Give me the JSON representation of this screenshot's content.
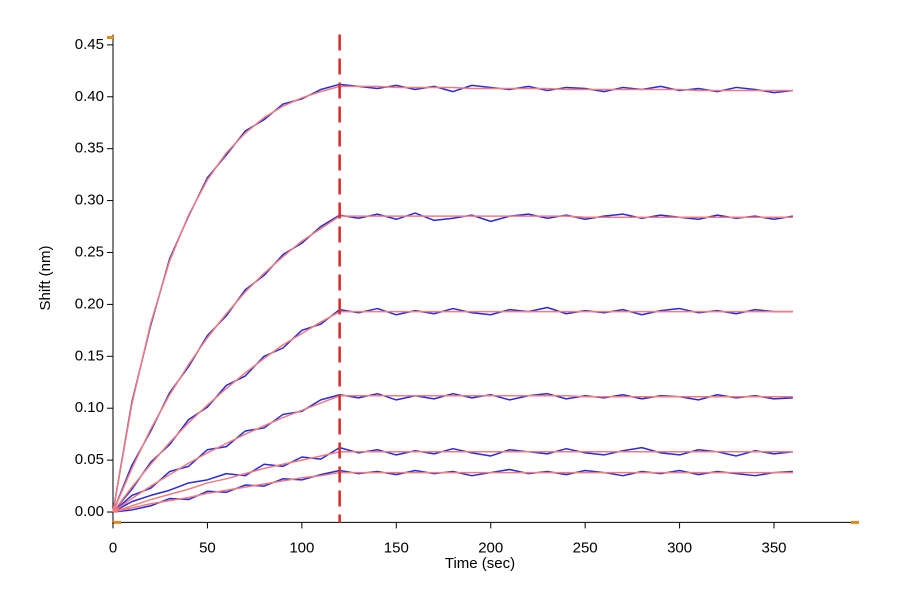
{
  "chart_data": {
    "type": "line",
    "x_label": "Time (sec)",
    "y_label": "Shift (nm)",
    "xlim": [
      0,
      395
    ],
    "ylim": [
      -0.01,
      0.46
    ],
    "xticks": [
      0,
      50,
      100,
      150,
      200,
      250,
      300,
      350
    ],
    "yticks": [
      {
        "value": 0,
        "label": "0.00"
      },
      0.05,
      {
        "value": 0.1,
        "label": "0.10"
      },
      0.15,
      {
        "value": 0.2,
        "label": "0.20"
      },
      0.25,
      {
        "value": 0.3,
        "label": "0.30"
      },
      0.35,
      {
        "value": 0.4,
        "label": "0.40"
      },
      0.45
    ],
    "grid": false,
    "vline_x": 120,
    "vline_color": "#d42a2a",
    "x": [
      0,
      10,
      20,
      30,
      40,
      50,
      60,
      70,
      80,
      90,
      100,
      110,
      120,
      130,
      140,
      150,
      160,
      170,
      180,
      190,
      200,
      210,
      220,
      230,
      240,
      250,
      260,
      270,
      280,
      290,
      300,
      310,
      320,
      330,
      340,
      350,
      360
    ],
    "series": [
      {
        "color": "#2a2ad8",
        "values": [
          0,
          0.106,
          0.18,
          0.244,
          0.285,
          0.322,
          0.344,
          0.367,
          0.378,
          0.393,
          0.398,
          0.407,
          0.412,
          0.41,
          0.408,
          0.411,
          0.407,
          0.41,
          0.405,
          0.411,
          0.409,
          0.407,
          0.41,
          0.406,
          0.409,
          0.408,
          0.405,
          0.409,
          0.407,
          0.41,
          0.406,
          0.408,
          0.405,
          0.409,
          0.407,
          0.404,
          0.406
        ]
      },
      {
        "color": "#2a2ad8",
        "values": [
          0,
          0.045,
          0.078,
          0.115,
          0.14,
          0.17,
          0.189,
          0.214,
          0.228,
          0.248,
          0.259,
          0.275,
          0.286,
          0.283,
          0.287,
          0.282,
          0.288,
          0.281,
          0.283,
          0.286,
          0.28,
          0.285,
          0.287,
          0.283,
          0.286,
          0.282,
          0.285,
          0.287,
          0.283,
          0.286,
          0.284,
          0.282,
          0.286,
          0.283,
          0.285,
          0.282,
          0.285
        ]
      },
      {
        "color": "#2a2ad8",
        "values": [
          0,
          0.022,
          0.048,
          0.065,
          0.089,
          0.101,
          0.122,
          0.131,
          0.15,
          0.158,
          0.175,
          0.181,
          0.195,
          0.192,
          0.196,
          0.19,
          0.194,
          0.191,
          0.196,
          0.192,
          0.19,
          0.195,
          0.193,
          0.197,
          0.191,
          0.194,
          0.192,
          0.195,
          0.19,
          0.194,
          0.196,
          0.192,
          0.194,
          0.191,
          0.195,
          0.193,
          0.193
        ]
      },
      {
        "color": "#2a2ad8",
        "values": [
          0,
          0.016,
          0.023,
          0.039,
          0.044,
          0.06,
          0.063,
          0.078,
          0.081,
          0.094,
          0.097,
          0.108,
          0.113,
          0.11,
          0.114,
          0.108,
          0.112,
          0.109,
          0.114,
          0.11,
          0.113,
          0.108,
          0.112,
          0.114,
          0.109,
          0.112,
          0.11,
          0.113,
          0.109,
          0.112,
          0.111,
          0.108,
          0.113,
          0.11,
          0.112,
          0.109,
          0.11
        ]
      },
      {
        "color": "#2a2ad8",
        "values": [
          0,
          0.01,
          0.016,
          0.021,
          0.028,
          0.031,
          0.037,
          0.035,
          0.046,
          0.044,
          0.053,
          0.051,
          0.062,
          0.057,
          0.06,
          0.055,
          0.059,
          0.056,
          0.061,
          0.057,
          0.054,
          0.06,
          0.058,
          0.056,
          0.061,
          0.057,
          0.055,
          0.059,
          0.062,
          0.057,
          0.055,
          0.06,
          0.058,
          0.054,
          0.059,
          0.056,
          0.058
        ]
      },
      {
        "color": "#2a2ad8",
        "values": [
          0,
          0.002,
          0.006,
          0.013,
          0.012,
          0.02,
          0.019,
          0.026,
          0.025,
          0.032,
          0.031,
          0.036,
          0.04,
          0.037,
          0.039,
          0.036,
          0.04,
          0.037,
          0.039,
          0.035,
          0.038,
          0.041,
          0.037,
          0.039,
          0.036,
          0.04,
          0.038,
          0.035,
          0.039,
          0.037,
          0.04,
          0.036,
          0.039,
          0.037,
          0.035,
          0.038,
          0.039
        ]
      },
      {
        "color": "#f27c7c",
        "values": [
          0,
          0.104,
          0.182,
          0.242,
          0.286,
          0.32,
          0.346,
          0.365,
          0.38,
          0.391,
          0.399,
          0.405,
          0.41,
          0.41,
          0.41,
          0.409,
          0.409,
          0.409,
          0.409,
          0.408,
          0.408,
          0.408,
          0.408,
          0.408,
          0.407,
          0.407,
          0.407,
          0.407,
          0.407,
          0.407,
          0.407,
          0.406,
          0.406,
          0.406,
          0.406,
          0.406,
          0.406
        ]
      },
      {
        "color": "#f27c7c",
        "values": [
          0,
          0.042,
          0.08,
          0.113,
          0.142,
          0.168,
          0.191,
          0.212,
          0.23,
          0.246,
          0.261,
          0.273,
          0.285,
          0.285,
          0.285,
          0.285,
          0.285,
          0.285,
          0.285,
          0.285,
          0.285,
          0.285,
          0.285,
          0.285,
          0.285,
          0.284,
          0.284,
          0.284,
          0.284,
          0.284,
          0.284,
          0.284,
          0.284,
          0.284,
          0.284,
          0.284,
          0.284
        ]
      },
      {
        "color": "#f27c7c",
        "values": [
          0,
          0.024,
          0.046,
          0.067,
          0.086,
          0.103,
          0.119,
          0.134,
          0.148,
          0.161,
          0.172,
          0.183,
          0.193,
          0.193,
          0.193,
          0.193,
          0.193,
          0.193,
          0.193,
          0.193,
          0.193,
          0.193,
          0.193,
          0.193,
          0.193,
          0.193,
          0.193,
          0.193,
          0.193,
          0.193,
          0.193,
          0.193,
          0.193,
          0.193,
          0.193,
          0.193,
          0.193
        ]
      },
      {
        "color": "#f27c7c",
        "values": [
          0,
          0.013,
          0.025,
          0.036,
          0.047,
          0.057,
          0.066,
          0.075,
          0.083,
          0.091,
          0.098,
          0.105,
          0.112,
          0.112,
          0.112,
          0.112,
          0.112,
          0.112,
          0.112,
          0.112,
          0.112,
          0.112,
          0.112,
          0.112,
          0.112,
          0.111,
          0.111,
          0.111,
          0.111,
          0.111,
          0.111,
          0.111,
          0.111,
          0.111,
          0.111,
          0.111,
          0.111
        ]
      },
      {
        "color": "#f27c7c",
        "values": [
          0,
          0.006,
          0.012,
          0.017,
          0.022,
          0.028,
          0.032,
          0.037,
          0.042,
          0.046,
          0.05,
          0.054,
          0.058,
          0.058,
          0.058,
          0.058,
          0.058,
          0.058,
          0.058,
          0.058,
          0.058,
          0.058,
          0.058,
          0.058,
          0.058,
          0.058,
          0.058,
          0.058,
          0.058,
          0.058,
          0.058,
          0.058,
          0.058,
          0.058,
          0.058,
          0.058,
          0.058
        ]
      },
      {
        "color": "#f27c7c",
        "values": [
          0,
          0.004,
          0.008,
          0.011,
          0.014,
          0.018,
          0.021,
          0.024,
          0.027,
          0.03,
          0.033,
          0.035,
          0.038,
          0.038,
          0.038,
          0.038,
          0.038,
          0.038,
          0.038,
          0.038,
          0.038,
          0.038,
          0.038,
          0.038,
          0.038,
          0.038,
          0.038,
          0.038,
          0.038,
          0.038,
          0.038,
          0.038,
          0.038,
          0.038,
          0.038,
          0.038,
          0.038
        ]
      }
    ]
  }
}
